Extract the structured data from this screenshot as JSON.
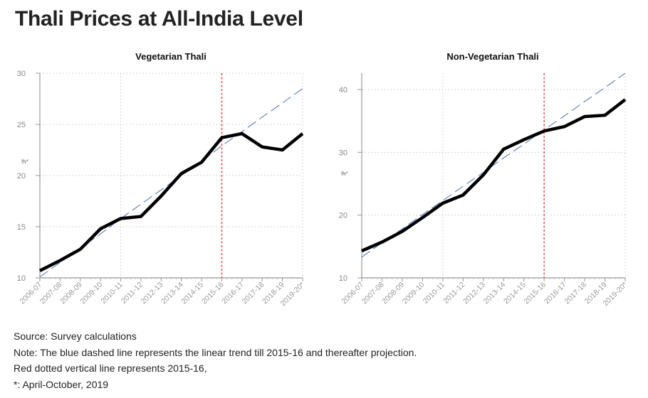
{
  "title": "Thali Prices at All-India Level",
  "chart_data": [
    {
      "type": "line",
      "title": "Vegetarian Thali",
      "xlabel": "",
      "ylabel": "₹",
      "categories": [
        "2006-07",
        "2007-08",
        "2008-09",
        "2009-10",
        "2010-11",
        "2011-12",
        "2012-13",
        "2013-14",
        "2014-15",
        "2015-16",
        "2016-17",
        "2017-18",
        "2018-19",
        "2019-20*"
      ],
      "ylim": [
        10,
        30
      ],
      "yticks": [
        10,
        15,
        20,
        25,
        30
      ],
      "grid": true,
      "series": [
        {
          "name": "Vegetarian Thali price",
          "color": "#000000",
          "values": [
            10.7,
            11.7,
            12.8,
            14.8,
            15.8,
            16.0,
            18.0,
            20.2,
            21.3,
            23.7,
            24.1,
            22.8,
            22.5,
            24.1
          ]
        },
        {
          "name": "Linear trend / projection",
          "color": "#4a6fb5",
          "style": "dashed",
          "values": [
            10.1,
            11.5,
            12.9,
            14.3,
            15.8,
            17.2,
            18.6,
            20.0,
            21.4,
            22.9,
            24.3,
            25.7,
            27.1,
            28.5
          ]
        }
      ],
      "reference_line": {
        "category": "2015-16",
        "color": "#e0514f",
        "style": "dotted"
      }
    },
    {
      "type": "line",
      "title": "Non-Vegetarian Thali",
      "xlabel": "",
      "ylabel": "₹",
      "categories": [
        "2006-07",
        "2007-08",
        "2008-09",
        "2009-10",
        "2010-11",
        "2011-12",
        "2012-13",
        "2013-14",
        "2014-15",
        "2015-16",
        "2016-17",
        "2017-18",
        "2018-19",
        "2019-20*"
      ],
      "ylim": [
        10,
        42.6
      ],
      "yticks": [
        10,
        20,
        30,
        40
      ],
      "grid": true,
      "series": [
        {
          "name": "Non-Vegetarian Thali price",
          "color": "#000000",
          "values": [
            14.3,
            15.7,
            17.4,
            19.6,
            21.9,
            23.2,
            26.4,
            30.5,
            32.0,
            33.4,
            34.1,
            35.7,
            35.9,
            38.4
          ]
        },
        {
          "name": "Linear trend / projection",
          "color": "#4a6fb5",
          "style": "dashed",
          "values": [
            13.3,
            15.6,
            17.8,
            20.1,
            22.3,
            24.6,
            26.8,
            29.1,
            31.3,
            33.6,
            35.8,
            38.1,
            40.3,
            42.6
          ]
        }
      ],
      "reference_line": {
        "category": "2015-16",
        "color": "#e0514f",
        "style": "dotted"
      }
    }
  ],
  "footnotes": [
    "Source: Survey calculations",
    "Note: The blue dashed line represents the linear trend till 2015-16 and thereafter projection.",
    "Red dotted vertical line represents 2015-16,",
    "*: April-October, 2019"
  ]
}
